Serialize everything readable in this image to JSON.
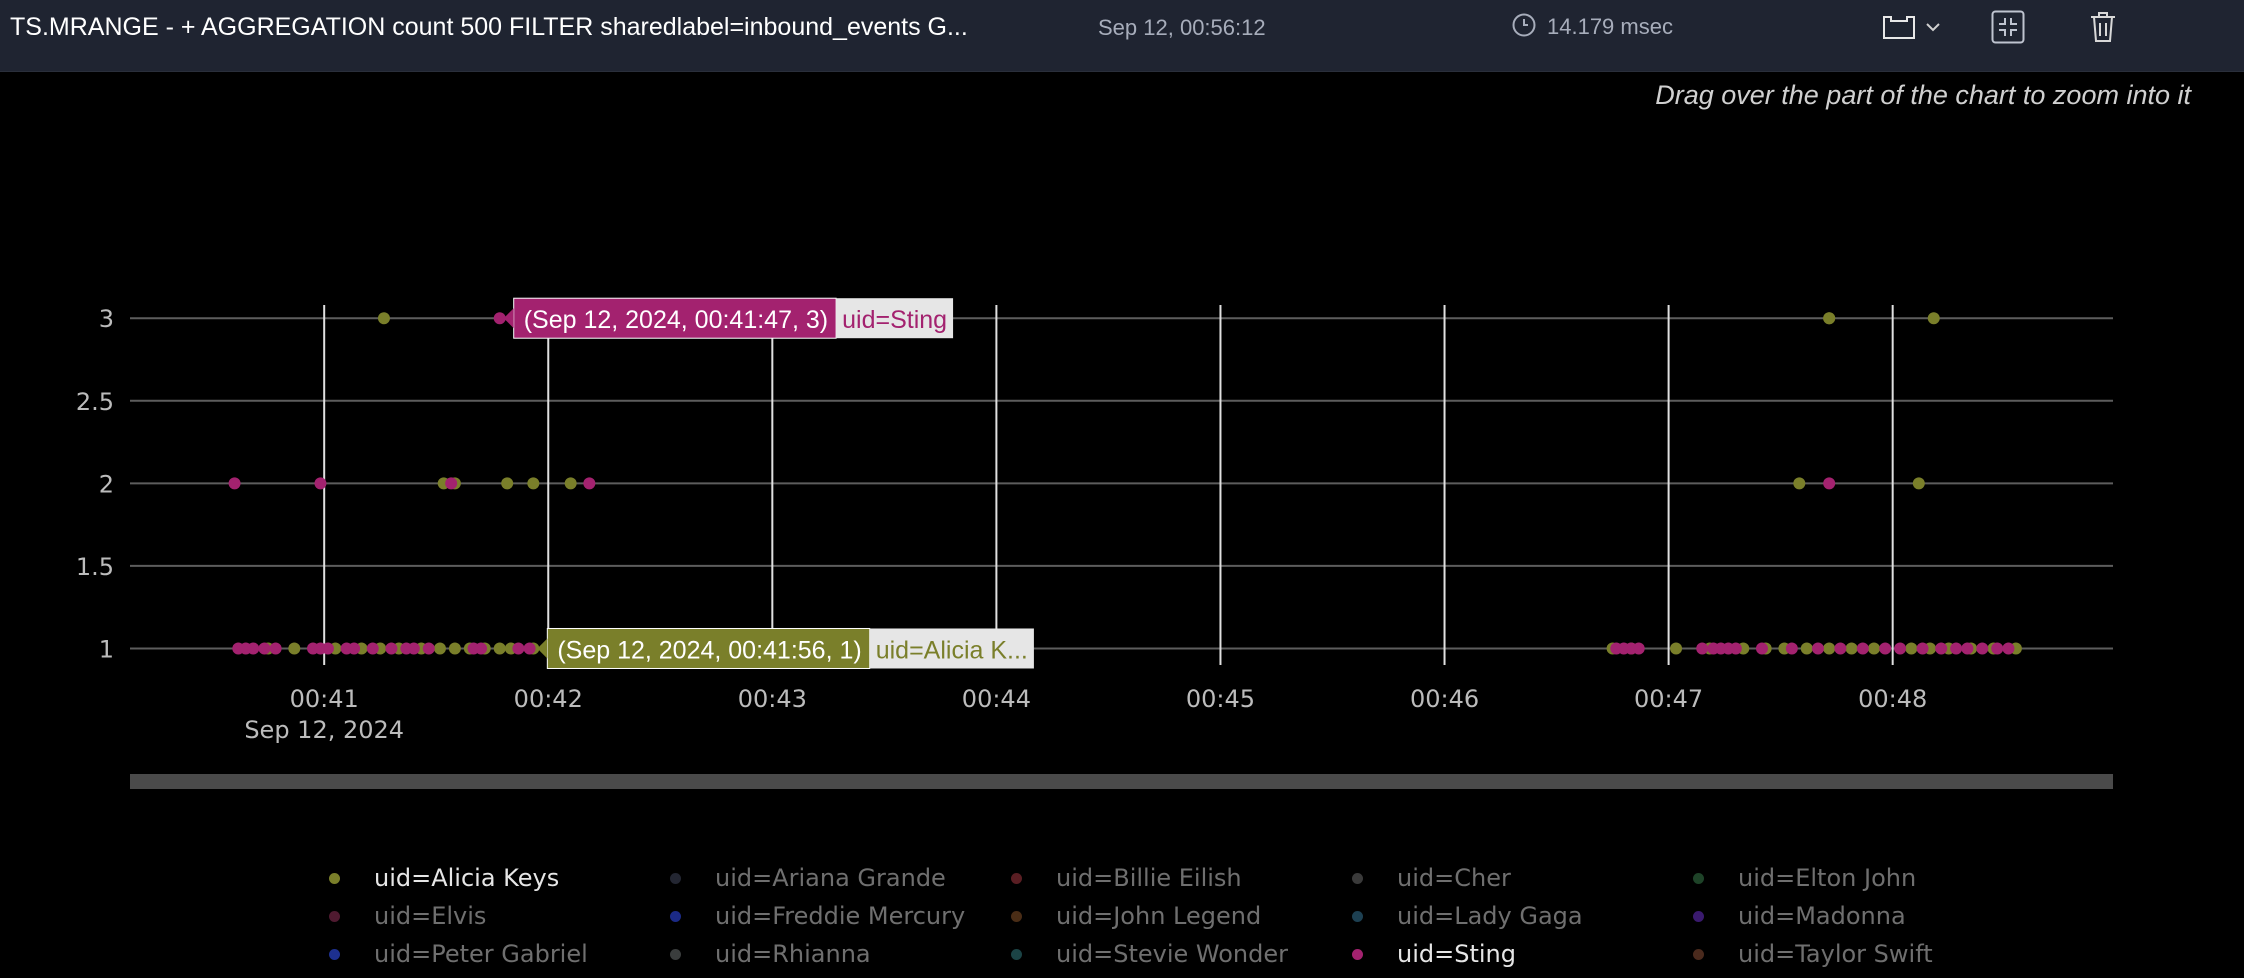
{
  "header": {
    "query": "TS.MRANGE - + AGGREGATION count 500 FILTER sharedlabel=inbound_events G...",
    "timestamp": "Sep 12, 00:56:12",
    "duration": "14.179 msec"
  },
  "hint": "Drag over the part of the chart to zoom into it",
  "colors": {
    "alicia": "#7a7f2a",
    "sting": "#a3226f",
    "background": "#000000",
    "topbar": "#1f2431"
  },
  "chart_data": {
    "type": "scatter",
    "x_axis": {
      "range": [
        "00:40:08",
        "00:48:59"
      ],
      "ticks": [
        "00:41",
        "00:42",
        "00:43",
        "00:44",
        "00:45",
        "00:46",
        "00:47",
        "00:48"
      ],
      "date_label": "Sep 12, 2024"
    },
    "y_axis": {
      "range": [
        0.9,
        3.08
      ],
      "ticks": [
        "1",
        "1.5",
        "2",
        "2.5",
        "3"
      ]
    },
    "grid": true,
    "series": [
      {
        "name": "uid=Alicia Keys",
        "color": "#7a7f2a",
        "x": [
          "00:40:45",
          "00:40:52",
          "00:41:03",
          "00:41:10",
          "00:41:15",
          "00:41:20",
          "00:41:26",
          "00:41:31",
          "00:41:35",
          "00:41:39",
          "00:41:43",
          "00:41:47",
          "00:41:50",
          "00:41:56",
          "00:46:45",
          "00:46:50",
          "00:47:02",
          "00:47:11",
          "00:47:20",
          "00:47:26",
          "00:47:31",
          "00:47:37",
          "00:47:43",
          "00:47:49",
          "00:47:55",
          "00:48:05",
          "00:48:10",
          "00:48:15",
          "00:48:21",
          "00:48:27",
          "00:48:33",
          "00:41:16",
          "00:41:32",
          "00:41:35",
          "00:41:49",
          "00:41:56",
          "00:42:06",
          "00:47:35",
          "00:47:43",
          "00:48:07",
          "00:47:43",
          "00:48:11"
        ],
        "y": [
          1,
          1,
          1,
          1,
          1,
          1,
          1,
          1,
          1,
          1,
          1,
          1,
          1,
          1,
          1,
          1,
          1,
          1,
          1,
          1,
          1,
          1,
          1,
          1,
          1,
          1,
          1,
          1,
          1,
          1,
          1,
          3,
          2,
          2,
          2,
          2,
          2,
          2,
          3,
          2,
          3,
          3
        ]
      },
      {
        "name": "uid=Sting",
        "color": "#a3226f",
        "x": [
          "00:40:37",
          "00:40:39",
          "00:40:41",
          "00:40:44",
          "00:40:47",
          "00:40:57",
          "00:40:59",
          "00:41:01",
          "00:41:06",
          "00:41:08",
          "00:41:13",
          "00:41:18",
          "00:41:22",
          "00:41:24",
          "00:41:28",
          "00:41:40",
          "00:41:42",
          "00:41:52",
          "00:41:55",
          "00:46:46",
          "00:46:48",
          "00:46:50",
          "00:46:52",
          "00:47:09",
          "00:47:12",
          "00:47:14",
          "00:47:16",
          "00:47:18",
          "00:47:25",
          "00:47:33",
          "00:47:40",
          "00:47:46",
          "00:47:52",
          "00:47:58",
          "00:48:02",
          "00:48:08",
          "00:48:13",
          "00:48:17",
          "00:48:20",
          "00:48:24",
          "00:48:28",
          "00:48:31",
          "00:40:36",
          "00:40:59",
          "00:41:34",
          "00:42:11",
          "00:47:43",
          "00:41:47"
        ],
        "y": [
          1,
          1,
          1,
          1,
          1,
          1,
          1,
          1,
          1,
          1,
          1,
          1,
          1,
          1,
          1,
          1,
          1,
          1,
          1,
          1,
          1,
          1,
          1,
          1,
          1,
          1,
          1,
          1,
          1,
          1,
          1,
          1,
          1,
          1,
          1,
          1,
          1,
          1,
          1,
          1,
          1,
          1,
          2,
          2,
          2,
          2,
          2,
          3
        ]
      }
    ],
    "tooltips": [
      {
        "value": "(Sep 12, 2024, 00:41:47, 3)",
        "series": "uid=Sting",
        "x": "00:41:47",
        "y": 3,
        "color": "#a3226f"
      },
      {
        "value": "(Sep 12, 2024, 00:41:56, 1)",
        "series": "uid=Alicia K...",
        "x": "00:41:56",
        "y": 1,
        "color": "#7a7f2a"
      }
    ]
  },
  "legend": [
    {
      "label": "uid=Alicia Keys",
      "color": "#7a7f2a",
      "active": true
    },
    {
      "label": "uid=Ariana Grande",
      "color": "#232632",
      "active": false
    },
    {
      "label": "uid=Billie Eilish",
      "color": "#5a1e23",
      "active": false
    },
    {
      "label": "uid=Cher",
      "color": "#3a3a3a",
      "active": false
    },
    {
      "label": "uid=Elton John",
      "color": "#1e4328",
      "active": false
    },
    {
      "label": "uid=Elvis",
      "color": "#4f1a30",
      "active": false
    },
    {
      "label": "uid=Freddie Mercury",
      "color": "#1b2a86",
      "active": false
    },
    {
      "label": "uid=John Legend",
      "color": "#4a2d16",
      "active": false
    },
    {
      "label": "uid=Lady Gaga",
      "color": "#1d4052",
      "active": false
    },
    {
      "label": "uid=Madonna",
      "color": "#3a1a6e",
      "active": false
    },
    {
      "label": "uid=Peter Gabriel",
      "color": "#1d3090",
      "active": false
    },
    {
      "label": "uid=Rhianna",
      "color": "#3a3d3d",
      "active": false
    },
    {
      "label": "uid=Stevie Wonder",
      "color": "#1b4345",
      "active": false
    },
    {
      "label": "uid=Sting",
      "color": "#a3226f",
      "active": true
    },
    {
      "label": "uid=Taylor Swift",
      "color": "#4a2a1d",
      "active": false
    }
  ]
}
